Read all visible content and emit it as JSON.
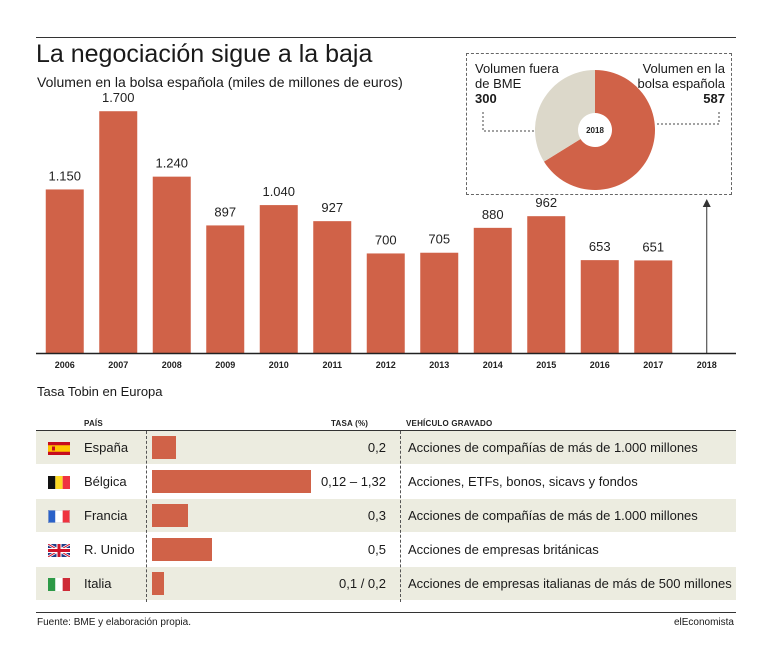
{
  "header": {
    "title": "La negociación sigue a la baja",
    "subtitle": "Volumen en la bolsa española (miles de millones de euros)"
  },
  "colors": {
    "bar": "#d06248",
    "donut_light": "#dcd8ca",
    "row_shade": "#ecece0"
  },
  "chart_data": [
    {
      "type": "bar",
      "title": "La negociación sigue a la baja",
      "subtitle": "Volumen en la bolsa española (miles de millones de euros)",
      "categories": [
        "2006",
        "2007",
        "2008",
        "2009",
        "2010",
        "2011",
        "2012",
        "2013",
        "2014",
        "2015",
        "2016",
        "2017",
        "2018"
      ],
      "values": [
        1150,
        1700,
        1240,
        897,
        1040,
        927,
        700,
        705,
        880,
        962,
        653,
        651,
        null
      ],
      "value_labels": [
        "1.150",
        "1.700",
        "1.240",
        "897",
        "1.040",
        "927",
        "700",
        "705",
        "880",
        "962",
        "653",
        "651",
        ""
      ],
      "ylim": [
        0,
        1800
      ],
      "grid": false,
      "xlabel": "",
      "ylabel": ""
    },
    {
      "type": "pie",
      "center_label": "2018",
      "slices": [
        {
          "label": "Volumen fuera de BME",
          "value": 300,
          "value_label": "300"
        },
        {
          "label": "Volumen en la bolsa española",
          "value": 587,
          "value_label": "587"
        }
      ]
    }
  ],
  "donut_labels": {
    "left_text": "Volumen fuera de BME",
    "left_value": "300",
    "right_text": "Volumen en la bolsa española",
    "right_value": "587",
    "center": "2018"
  },
  "table": {
    "section_title": "Tasa Tobin en Europa",
    "headers": {
      "country": "PAÍS",
      "rate": "TASA (%)",
      "vehicle": "VEHÍCULO GRAVADO"
    },
    "rows": [
      {
        "flag": "spain-flag-icon",
        "country": "España",
        "rate_text": "0,2",
        "rate_value": 0.2,
        "vehicle": "Acciones de compañías de más de 1.000 millones"
      },
      {
        "flag": "belgium-flag-icon",
        "country": "Bélgica",
        "rate_text": "0,12 – 1,32",
        "rate_value": 1.32,
        "vehicle": "Acciones, ETFs, bonos, sicavs y fondos"
      },
      {
        "flag": "france-flag-icon",
        "country": "Francia",
        "rate_text": "0,3",
        "rate_value": 0.3,
        "vehicle": "Acciones de compañías de más de 1.000 millones"
      },
      {
        "flag": "uk-flag-icon",
        "country": "R. Unido",
        "rate_text": "0,5",
        "rate_value": 0.5,
        "vehicle": "Acciones de empresas británicas"
      },
      {
        "flag": "italy-flag-icon",
        "country": "Italia",
        "rate_text": "0,1 / 0,2",
        "rate_value": 0.1,
        "vehicle": "Acciones de empresas italianas de más de 500 millones"
      }
    ]
  },
  "footer": {
    "source": "Fuente: BME y elaboración propia.",
    "brand": "elEconomista"
  }
}
